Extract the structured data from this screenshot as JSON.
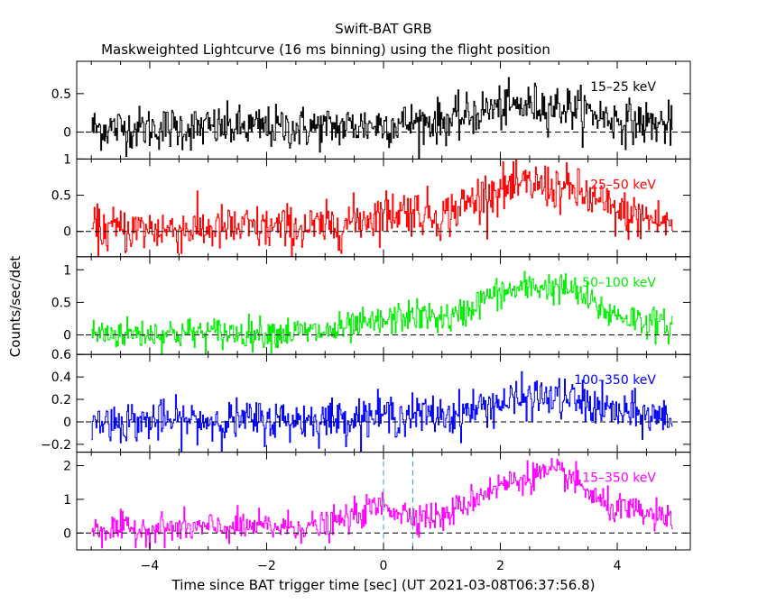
{
  "title": "Swift-BAT GRB",
  "subtitle": "Maskweighted Lightcurve (16 ms binning) using the flight position",
  "xlabel": "Time since BAT trigger time [sec] (UT 2021-03-08T06:37:56.8)",
  "ylabel": "Counts/sec/det",
  "x_ticks": [
    "−4",
    "−2",
    "0",
    "2",
    "4"
  ],
  "chart_data": {
    "type": "line",
    "xlim": [
      -5.25,
      5.25
    ],
    "grid": false,
    "trigger_window_markers": [
      0.0,
      0.5
    ],
    "panels": [
      {
        "name": "15–25 keV",
        "color": "#000000",
        "ylim": [
          -0.35,
          0.92
        ],
        "ytick_values": [
          0,
          0.5
        ],
        "ytick_labels": [
          "0",
          "0.5"
        ],
        "noise": 0.14,
        "profile": [
          [
            -5.0,
            0.05
          ],
          [
            -1.0,
            0.06
          ],
          [
            0.0,
            0.1
          ],
          [
            1.2,
            0.15
          ],
          [
            1.8,
            0.3
          ],
          [
            2.6,
            0.35
          ],
          [
            3.2,
            0.32
          ],
          [
            4.0,
            0.15
          ],
          [
            5.0,
            0.08
          ]
        ]
      },
      {
        "name": "25–50 keV",
        "color": "#ff0000",
        "ylim": [
          -0.35,
          1.0
        ],
        "ytick_values": [
          0,
          0.5,
          1
        ],
        "ytick_labels": [
          "0",
          "0.5",
          "1"
        ],
        "noise": 0.16,
        "profile": [
          [
            -5.0,
            0.02
          ],
          [
            -1.0,
            0.05
          ],
          [
            0.0,
            0.25
          ],
          [
            0.4,
            0.3
          ],
          [
            1.0,
            0.2
          ],
          [
            1.8,
            0.55
          ],
          [
            2.6,
            0.65
          ],
          [
            3.3,
            0.55
          ],
          [
            4.0,
            0.25
          ],
          [
            5.0,
            0.1
          ]
        ]
      },
      {
        "name": "50–100 keV",
        "color": "#00ee00",
        "ylim": [
          -0.3,
          1.2
        ],
        "ytick_values": [
          0,
          0.5,
          1
        ],
        "ytick_labels": [
          "0",
          "0.5",
          "1"
        ],
        "noise": 0.12,
        "profile": [
          [
            -5.0,
            0.02
          ],
          [
            -1.0,
            0.04
          ],
          [
            0.0,
            0.2
          ],
          [
            0.4,
            0.3
          ],
          [
            1.2,
            0.25
          ],
          [
            1.8,
            0.6
          ],
          [
            2.6,
            0.75
          ],
          [
            3.2,
            0.7
          ],
          [
            3.8,
            0.35
          ],
          [
            5.0,
            0.1
          ]
        ]
      },
      {
        "name": "100–350 keV",
        "color": "#0000ff",
        "ylim": [
          -0.27,
          0.6
        ],
        "ytick_values": [
          -0.2,
          0,
          0.2,
          0.4,
          0.6
        ],
        "ytick_labels": [
          "−0.2",
          "0",
          "0.2",
          "0.4",
          "0.6"
        ],
        "noise": 0.09,
        "profile": [
          [
            -5.0,
            0.0
          ],
          [
            -1.0,
            0.02
          ],
          [
            0.0,
            0.06
          ],
          [
            1.2,
            0.06
          ],
          [
            1.8,
            0.15
          ],
          [
            2.6,
            0.22
          ],
          [
            3.2,
            0.2
          ],
          [
            4.0,
            0.08
          ],
          [
            5.0,
            0.03
          ]
        ]
      },
      {
        "name": "15–350 keV",
        "color": "#ff00ff",
        "ylim": [
          -0.5,
          2.4
        ],
        "ytick_values": [
          0,
          1,
          2
        ],
        "ytick_labels": [
          "0",
          "1",
          "2"
        ],
        "noise": 0.22,
        "profile": [
          [
            -5.0,
            0.1
          ],
          [
            -1.0,
            0.2
          ],
          [
            0.0,
            0.85
          ],
          [
            0.3,
            0.6
          ],
          [
            1.0,
            0.45
          ],
          [
            1.8,
            1.3
          ],
          [
            2.6,
            1.75
          ],
          [
            3.1,
            1.75
          ],
          [
            3.8,
            0.8
          ],
          [
            5.0,
            0.35
          ]
        ]
      }
    ]
  }
}
